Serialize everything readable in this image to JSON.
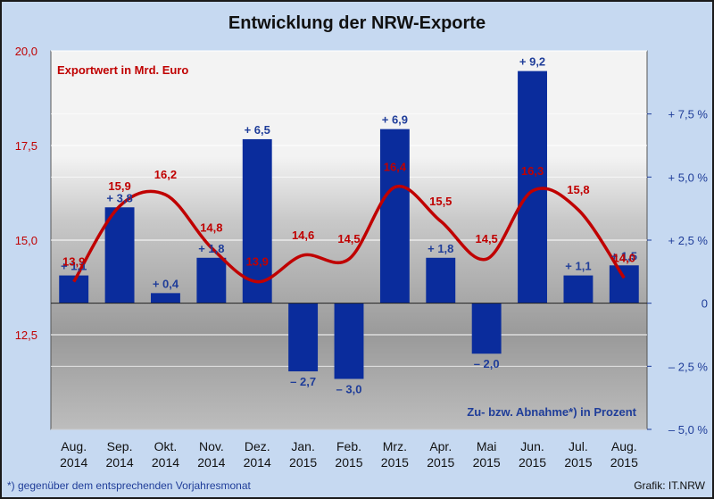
{
  "title": "Entwicklung der NRW-Exporte",
  "chart_data": {
    "type": "bar",
    "categories": [
      [
        "Aug.",
        "2014"
      ],
      [
        "Sep.",
        "2014"
      ],
      [
        "Okt.",
        "2014"
      ],
      [
        "Nov.",
        "2014"
      ],
      [
        "Dez.",
        "2014"
      ],
      [
        "Jan.",
        "2015"
      ],
      [
        "Feb.",
        "2015"
      ],
      [
        "Mrz.",
        "2015"
      ],
      [
        "Apr.",
        "2015"
      ],
      [
        "Mai",
        "2015"
      ],
      [
        "Jun.",
        "2015"
      ],
      [
        "Jul.",
        "2015"
      ],
      [
        "Aug.",
        "2015"
      ]
    ],
    "series": [
      {
        "name": "Exportwert in Mrd. Euro",
        "type": "line",
        "axis": "left",
        "color": "#c00000",
        "values": [
          13.9,
          15.9,
          16.2,
          14.8,
          13.9,
          14.6,
          14.5,
          16.4,
          15.5,
          14.5,
          16.3,
          15.8,
          14.0
        ],
        "labels": [
          "13,9",
          "15,9",
          "16,2",
          "14,8",
          "13,9",
          "14,6",
          "14,5",
          "16,4",
          "15,5",
          "14,5",
          "16,3",
          "15,8",
          "14,0"
        ]
      },
      {
        "name": "Zu- bzw. Abnahme*) in Prozent",
        "type": "bar",
        "axis": "right",
        "color": "#0a2c9c",
        "values": [
          1.1,
          3.8,
          0.4,
          1.8,
          6.5,
          -2.7,
          -3.0,
          6.9,
          1.8,
          -2.0,
          9.2,
          1.1,
          1.5
        ],
        "labels": [
          "+ 1,1",
          "+ 3,8",
          "+ 0,4",
          "+ 1,8",
          "+ 6,5",
          "– 2,7",
          "– 3,0",
          "+ 6,9",
          "+ 1,8",
          "– 2,0",
          "+ 9,2",
          "+ 1,1",
          "+ 1,5"
        ]
      }
    ],
    "left_axis": {
      "ylim": [
        10.0,
        20.0
      ],
      "ticks": [
        12.5,
        15.0,
        17.5,
        20.0
      ],
      "tick_labels": [
        "12,5",
        "15,0",
        "17,5",
        "20,0"
      ]
    },
    "right_axis": {
      "ylim": [
        -5.0,
        10.0
      ],
      "ticks": [
        -5.0,
        -2.5,
        0,
        2.5,
        5.0,
        7.5
      ],
      "tick_labels": [
        "– 5,0 %",
        "– 2,5 %",
        "0",
        "+ 2,5 %",
        "+ 5,0 %",
        "+ 7,5 %"
      ]
    },
    "grid": true
  },
  "footer": {
    "note": "*) gegenüber dem entsprechenden Vorjahresmonat",
    "credit": "Grafik: IT.NRW"
  }
}
